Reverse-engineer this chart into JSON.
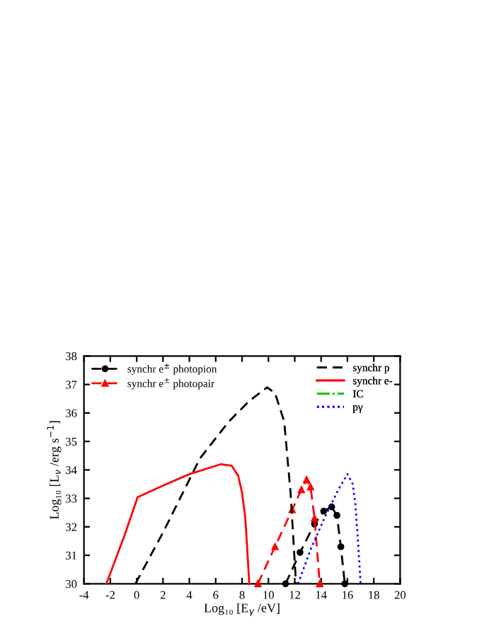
{
  "chart_data": {
    "type": "line",
    "xlabel": "Log₁₀ [E$_{γ}$ /eV]",
    "ylabel": "Log₁₀ [L$_{ν}$ /erg s$^{−1}$]",
    "xlim": [
      -4,
      20
    ],
    "ylim": [
      30,
      38
    ],
    "xticks": [
      -4,
      -2,
      0,
      2,
      4,
      6,
      8,
      10,
      12,
      14,
      16,
      18,
      20
    ],
    "yticks": [
      30,
      31,
      32,
      33,
      34,
      35,
      36,
      37,
      38
    ],
    "grid": false,
    "legend": "top",
    "series": [
      {
        "name": "synchr e$^{±}$ photopion",
        "color": "#000000",
        "line_style": "dashed",
        "marker": "circle",
        "x": [
          11.3,
          12.4,
          13.5,
          14.2,
          14.8,
          15.2,
          15.5,
          15.8
        ],
        "values": [
          30,
          31.1,
          32.1,
          32.55,
          32.7,
          32.4,
          31.3,
          30
        ]
      },
      {
        "name": "synchr e$^{±}$ photopair",
        "color": "#ff0000",
        "line_style": "dashed",
        "marker": "triangle",
        "x": [
          9.2,
          10.5,
          11.8,
          12.5,
          12.9,
          13.2,
          13.5,
          13.9
        ],
        "values": [
          30,
          31.3,
          32.6,
          33.3,
          33.65,
          33.4,
          32.3,
          30
        ]
      },
      {
        "name": "synchr p",
        "color": "#000000",
        "line_style": "dashed",
        "marker": "none",
        "x": [
          -0.1,
          2,
          4.8,
          7,
          8.5,
          9.9,
          10.5,
          11.2,
          11.7,
          11.9,
          12.1
        ],
        "values": [
          30,
          31.8,
          34.4,
          35.7,
          36.4,
          36.9,
          36.7,
          35.7,
          33.1,
          31.5,
          30
        ]
      },
      {
        "name": "synchr e-",
        "color": "#ff0000",
        "line_style": "solid",
        "marker": "none",
        "x": [
          -2.3,
          -1,
          0.07,
          2,
          4,
          6.4,
          7.2,
          7.7,
          8.0,
          8.25,
          8.55
        ],
        "values": [
          30,
          31.6,
          33.04,
          33.45,
          33.85,
          34.2,
          34.15,
          33.8,
          33.2,
          32.3,
          30
        ]
      },
      {
        "name": "IC",
        "color": "#00cc00",
        "line_style": "dashdot",
        "marker": "none"
      },
      {
        "name": "pγ",
        "color": "#0000ff",
        "line_style": "dotted",
        "marker": "none",
        "x": [
          12.25,
          13.2,
          14.25,
          15.3,
          16.0,
          16.4,
          16.6,
          16.8,
          17.0
        ],
        "values": [
          30,
          31.2,
          32.3,
          33.3,
          33.85,
          33.5,
          32.8,
          31.5,
          30
        ]
      }
    ]
  }
}
